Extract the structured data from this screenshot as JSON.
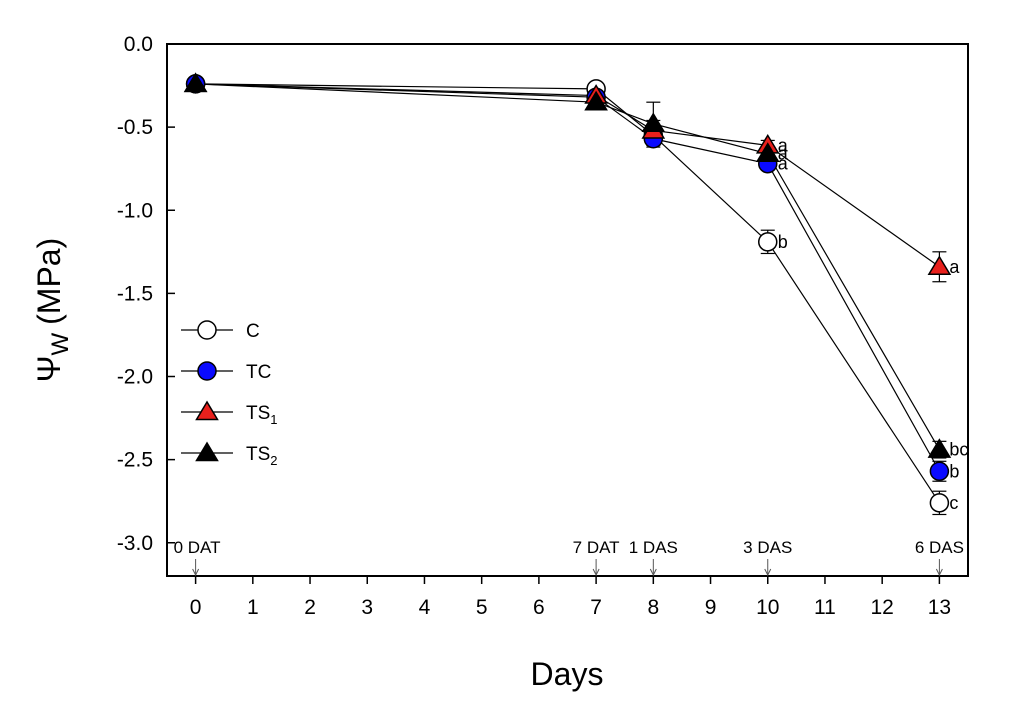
{
  "chart_data": {
    "type": "line",
    "title": "",
    "xlabel": "Days",
    "ylabel": {
      "symbol": "Ψ",
      "subscript": "W",
      "unit": "(MPa)"
    },
    "x": [
      0,
      7,
      8,
      10,
      13
    ],
    "xlim": [
      -0.5,
      13.5
    ],
    "ylim": [
      -3.2,
      0.0
    ],
    "xticks": [
      "0",
      "1",
      "2",
      "3",
      "4",
      "5",
      "6",
      "7",
      "8",
      "9",
      "10",
      "11",
      "12",
      "13"
    ],
    "yticks": [
      "0.0",
      "-0.5",
      "-1.0",
      "-1.5",
      "-2.0",
      "-2.5",
      "-3.0"
    ],
    "grid": false,
    "legend_position": "middle-left",
    "series": [
      {
        "name": "C",
        "sub": "",
        "marker": "circle",
        "fill": "#ffffff",
        "values": [
          -0.24,
          -0.27,
          -0.55,
          -1.19,
          -2.76
        ],
        "errors": [
          0.02,
          0.02,
          0.05,
          0.07,
          0.07
        ],
        "sig": [
          null,
          null,
          null,
          "b",
          "c"
        ]
      },
      {
        "name": "TC",
        "sub": "",
        "marker": "circle",
        "fill": "#0a0aff",
        "values": [
          -0.24,
          -0.32,
          -0.57,
          -0.72,
          -2.57
        ],
        "errors": [
          0.02,
          0.02,
          0.05,
          0.03,
          0.06
        ],
        "sig": [
          null,
          null,
          null,
          "a",
          "b"
        ]
      },
      {
        "name": "TS",
        "sub": "1",
        "marker": "triangle",
        "fill": "#e8201c",
        "values": [
          -0.24,
          -0.31,
          -0.52,
          -0.61,
          -1.34
        ],
        "errors": [
          0.02,
          0.02,
          0.06,
          0.03,
          0.09
        ],
        "sig": [
          null,
          null,
          null,
          "a",
          "a"
        ]
      },
      {
        "name": "TS",
        "sub": "2",
        "marker": "triangle",
        "fill": "#000000",
        "values": [
          -0.24,
          -0.35,
          -0.48,
          -0.66,
          -2.44
        ],
        "errors": [
          0.02,
          0.02,
          0.13,
          0.03,
          0.05
        ],
        "sig": [
          null,
          null,
          null,
          "a",
          "bc"
        ]
      }
    ],
    "annotations": [
      {
        "x": 0,
        "label": "0 DAT"
      },
      {
        "x": 7,
        "label": "7 DAT"
      },
      {
        "x": 8,
        "label": "1 DAS"
      },
      {
        "x": 10,
        "label": "3 DAS"
      },
      {
        "x": 13,
        "label": "6 DAS"
      }
    ]
  }
}
